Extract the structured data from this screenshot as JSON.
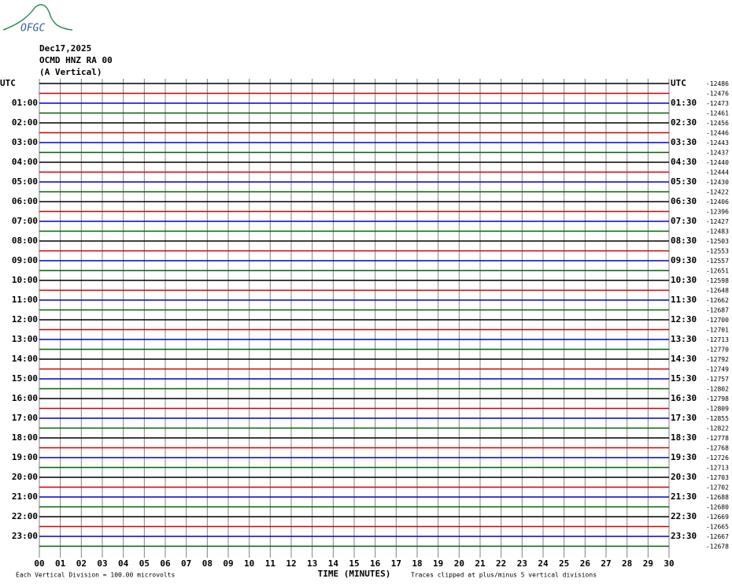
{
  "header": {
    "logo": "OFGC",
    "date": "Dec17,2025",
    "station": "OCMD HNZ RA 00",
    "component": "(A Vertical)"
  },
  "chart_data": {
    "type": "helicorder",
    "xlim": [
      0,
      30
    ],
    "xticks": [
      {
        "value": 0,
        "label": "00"
      },
      {
        "value": 1,
        "label": "01"
      },
      {
        "value": 2,
        "label": "02"
      },
      {
        "value": 3,
        "label": "03"
      },
      {
        "value": 4,
        "label": "04"
      },
      {
        "value": 5,
        "label": "05"
      },
      {
        "value": 6,
        "label": "06"
      },
      {
        "value": 7,
        "label": "07"
      },
      {
        "value": 8,
        "label": "08"
      },
      {
        "value": 9,
        "label": "09"
      },
      10,
      11,
      12,
      13,
      14,
      15,
      16,
      17,
      18,
      19,
      20,
      21,
      22,
      23,
      24,
      25,
      26,
      27,
      28,
      29,
      30
    ],
    "x_label": "TIME (MINUTES)",
    "footer_left": "Each Vertical Division =  100.00 microvolts",
    "footer_right": "Traces clipped at plus/minus 5 vertical divisions",
    "trace_colors": [
      "#000000",
      "#d00000",
      "#0000c8",
      "#006400"
    ],
    "left_labels": [
      "UTC",
      "01:00",
      "02:00",
      "03:00",
      "04:00",
      "05:00",
      "06:00",
      "07:00",
      "08:00",
      "09:00",
      "10:00",
      "11:00",
      "12:00",
      "13:00",
      "14:00",
      "15:00",
      "16:00",
      "17:00",
      "18:00",
      "19:00",
      "20:00",
      "21:00",
      "22:00",
      "23:00"
    ],
    "right_labels": [
      "UTC",
      "01:30",
      "02:30",
      "03:30",
      "04:30",
      "05:30",
      "06:30",
      "07:30",
      "08:30",
      "09:30",
      "10:30",
      "11:30",
      "12:30",
      "13:30",
      "14:30",
      "15:30",
      "16:30",
      "17:30",
      "18:30",
      "19:30",
      "20:30",
      "21:30",
      "22:30",
      "23:30"
    ],
    "row_values": [
      -12486,
      -12476,
      -12473,
      -12461,
      -12456,
      -12446,
      -12443,
      -12437,
      -12440,
      -12444,
      -12430,
      -12422,
      -12406,
      -12396,
      -12427,
      -12483,
      -12503,
      -12553,
      -12557,
      -12651,
      -12598,
      -12648,
      -12662,
      -12687,
      -12700,
      -12701,
      -12713,
      -12770,
      -12792,
      -12749,
      -12757,
      -12802,
      -12798,
      -12809,
      -12855,
      -12822,
      -12778,
      -12768,
      -12726,
      -12713,
      -12703,
      -12702,
      -12688,
      -12680,
      -12669,
      -12665,
      -12667,
      -12678
    ]
  }
}
